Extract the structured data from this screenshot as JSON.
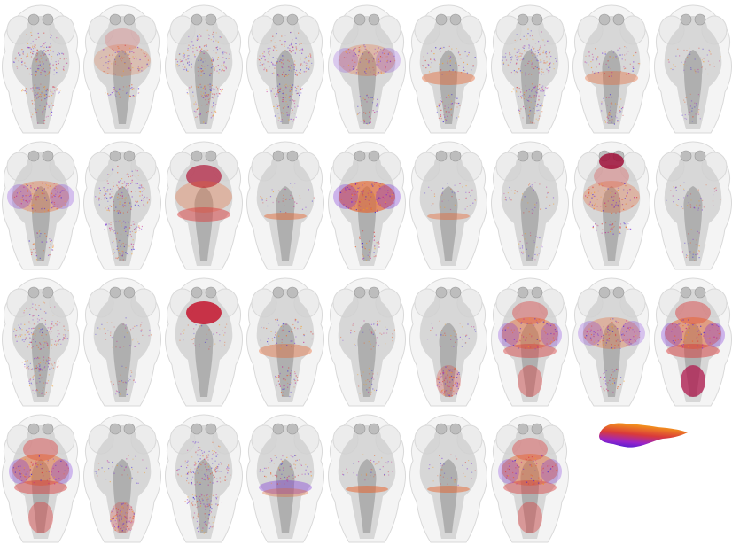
{
  "figure": {
    "rows": 4,
    "cols": 9,
    "background": "#ffffff",
    "outline_color": "#d9d9d9",
    "brain_gray": "#8e8e8e",
    "colormap": [
      "#3a1fd6",
      "#7a2bd9",
      "#c4228f",
      "#d93a3a",
      "#e8622a",
      "#f59a1a"
    ]
  },
  "panels": [
    {
      "pattern": "speckle",
      "intensity": 0.55
    },
    {
      "pattern": "forebrain",
      "intensity": 0.6
    },
    {
      "pattern": "speckle",
      "intensity": 0.5
    },
    {
      "pattern": "speckle",
      "intensity": 0.6
    },
    {
      "pattern": "tectum",
      "intensity": 0.6
    },
    {
      "pattern": "hindbrain-band",
      "intensity": 0.7
    },
    {
      "pattern": "speckle",
      "intensity": 0.4
    },
    {
      "pattern": "hindbrain-band",
      "intensity": 0.6
    },
    {
      "pattern": "sparse",
      "intensity": 0.3
    },
    {
      "pattern": "tectum",
      "intensity": 0.75
    },
    {
      "pattern": "speckle",
      "intensity": 0.55
    },
    {
      "pattern": "midbrain-band",
      "intensity": 0.75
    },
    {
      "pattern": "thin-band",
      "intensity": 0.55
    },
    {
      "pattern": "tectum-strong",
      "intensity": 0.9
    },
    {
      "pattern": "thin-band",
      "intensity": 0.5
    },
    {
      "pattern": "sparse",
      "intensity": 0.3
    },
    {
      "pattern": "forebrain-strong",
      "intensity": 0.85
    },
    {
      "pattern": "sparse",
      "intensity": 0.35
    },
    {
      "pattern": "speckle",
      "intensity": 0.4
    },
    {
      "pattern": "sparse",
      "intensity": 0.25
    },
    {
      "pattern": "forebrain-red",
      "intensity": 0.9
    },
    {
      "pattern": "hindbrain-band",
      "intensity": 0.65
    },
    {
      "pattern": "sparse",
      "intensity": 0.3
    },
    {
      "pattern": "hindbrain-lower",
      "intensity": 0.6
    },
    {
      "pattern": "whole",
      "intensity": 0.8
    },
    {
      "pattern": "tectum",
      "intensity": 0.7
    },
    {
      "pattern": "whole-strong",
      "intensity": 0.9
    },
    {
      "pattern": "whole",
      "intensity": 0.85
    },
    {
      "pattern": "hindbrain-lower",
      "intensity": 0.6
    },
    {
      "pattern": "speckle",
      "intensity": 0.45
    },
    {
      "pattern": "mid-band-purple",
      "intensity": 0.6
    },
    {
      "pattern": "thin-band",
      "intensity": 0.65
    },
    {
      "pattern": "thin-band",
      "intensity": 0.6
    },
    {
      "pattern": "whole",
      "intensity": 0.8
    }
  ],
  "colorbar": {
    "colors": [
      "#3a1fd6",
      "#7a2bd9",
      "#c4228f",
      "#d93a3a",
      "#e8622a",
      "#f59a1a"
    ]
  }
}
